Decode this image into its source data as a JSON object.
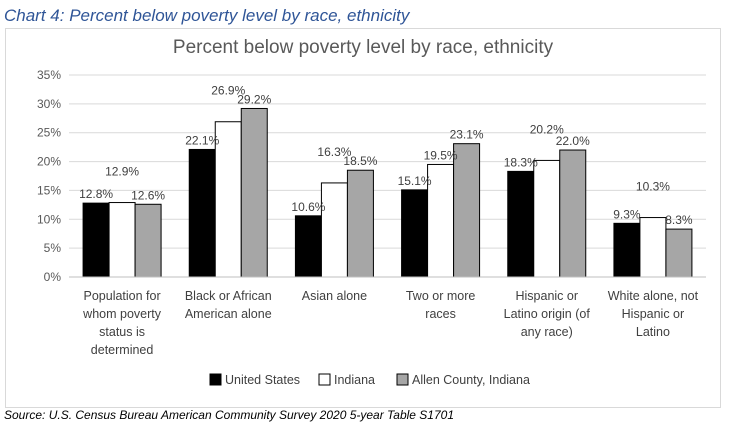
{
  "caption": "Chart 4: Percent below poverty level by race, ethnicity",
  "source": "Source: U.S. Census Bureau American Community Survey 2020 5-year Table S1701",
  "chart_data": {
    "type": "bar",
    "title": "Percent below poverty level by race, ethnicity",
    "xlabel": "",
    "ylabel": "",
    "ylim": [
      0,
      35
    ],
    "yticks": [
      "0%",
      "5%",
      "10%",
      "15%",
      "20%",
      "25%",
      "30%",
      "35%"
    ],
    "grid": true,
    "legend": "bottom",
    "categories": [
      [
        "Population for",
        "whom poverty",
        "status is",
        "determined"
      ],
      [
        "Black or African",
        "American alone"
      ],
      [
        "Asian alone"
      ],
      [
        "Two or more",
        "races"
      ],
      [
        "Hispanic or",
        "Latino origin (of",
        "any race)"
      ],
      [
        "White alone, not",
        "Hispanic or",
        "Latino"
      ]
    ],
    "series": [
      {
        "name": "United States",
        "color": "#000000",
        "values": [
          12.8,
          22.1,
          10.6,
          15.1,
          18.3,
          9.3
        ],
        "labels": [
          "12.8%",
          "22.1%",
          "10.6%",
          "15.1%",
          "18.3%",
          "9.3%"
        ]
      },
      {
        "name": "Indiana",
        "color": "#ffffff",
        "values": [
          12.9,
          26.9,
          16.3,
          19.5,
          20.2,
          10.3
        ],
        "labels": [
          "12.9%",
          "26.9%",
          "16.3%",
          "19.5%",
          "20.2%",
          "10.3%"
        ]
      },
      {
        "name": "Allen County, Indiana",
        "color": "#a6a6a6",
        "values": [
          12.6,
          29.2,
          18.5,
          23.1,
          22.0,
          8.3
        ],
        "labels": [
          "12.6%",
          "29.2%",
          "18.5%",
          "23.1%",
          "22.0%",
          "8.3%"
        ]
      }
    ]
  }
}
